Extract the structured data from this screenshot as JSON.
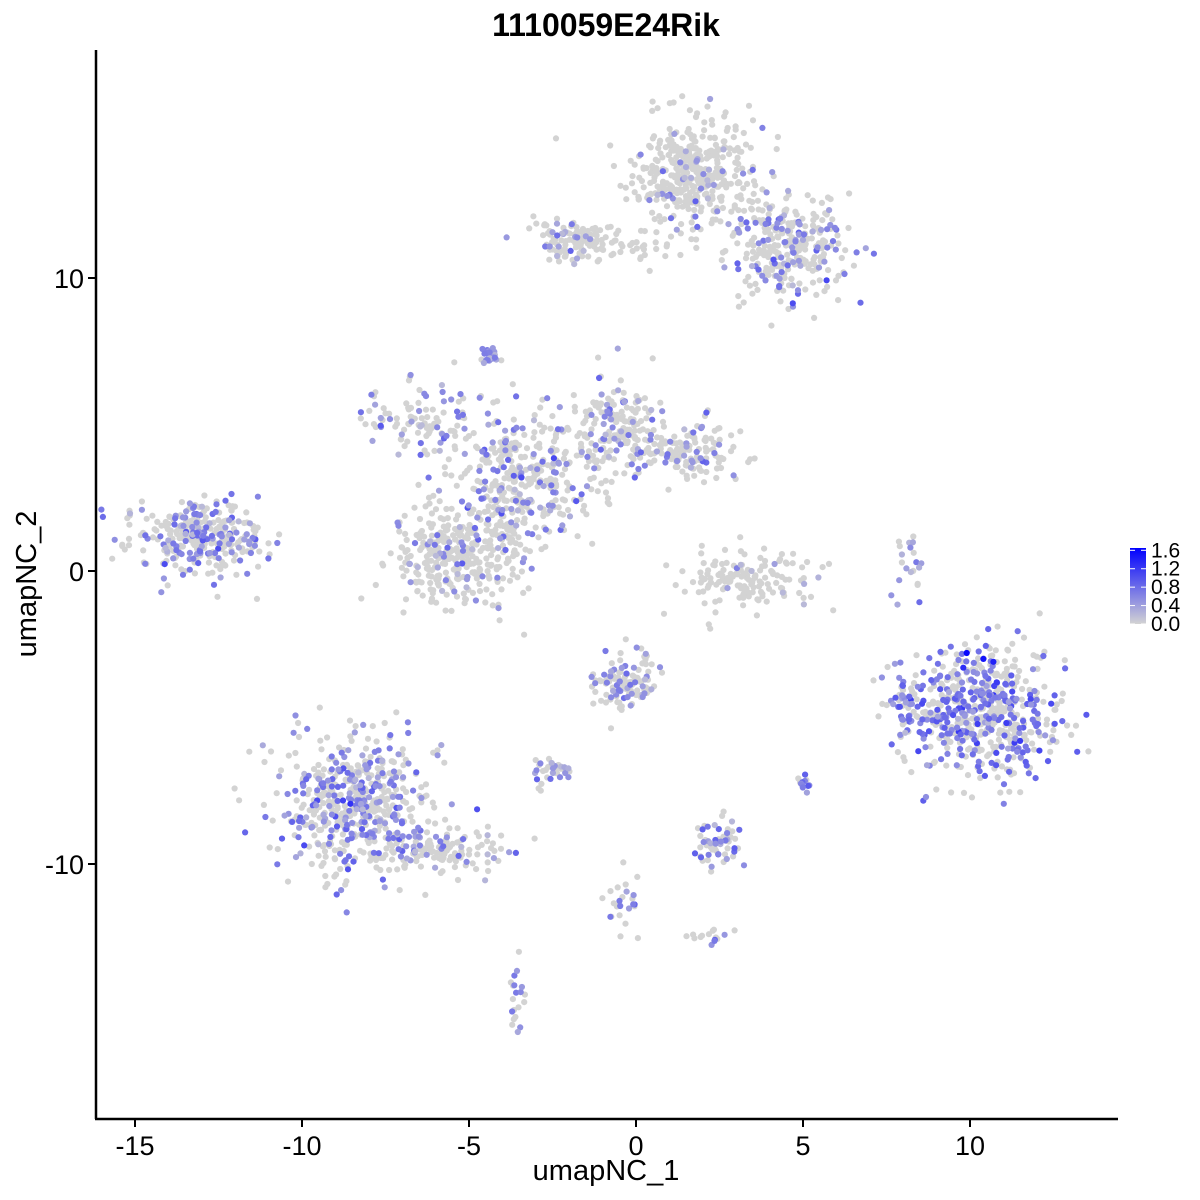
{
  "chart_data": {
    "type": "scatter",
    "title": "1110059E24Rik",
    "xlabel": "umapNC_1",
    "ylabel": "umapNC_2",
    "xlim": [
      -16.4,
      14.3
    ],
    "ylim": [
      -17.7,
      17.6
    ],
    "x_ticks": [
      -15,
      -10,
      -5,
      0,
      5,
      10
    ],
    "x_tick_labels": [
      "-15",
      "-10",
      "-5",
      "0",
      "5",
      "10"
    ],
    "y_ticks": [
      10,
      0,
      -10
    ],
    "y_tick_labels": [
      "10",
      "0",
      "-10"
    ],
    "grid": false,
    "legend_position": "right",
    "color_scale": {
      "low_color": "#d3d3d3",
      "high_color": "#0000ff",
      "min": 0.0,
      "max": 1.65,
      "breaks": [
        1.6,
        1.2,
        0.8,
        0.4,
        0.0
      ],
      "break_labels": [
        "1.6",
        "1.2",
        "0.8",
        "0.4",
        "0.0"
      ]
    },
    "clusters": [
      {
        "center": [
          1.8,
          13.5
        ],
        "sd": [
          1.0,
          0.9
        ],
        "n": 420,
        "expr_frac": 0.1,
        "expr_mean": 0.45
      },
      {
        "center": [
          4.5,
          11.0
        ],
        "sd": [
          0.9,
          0.9
        ],
        "n": 300,
        "expr_frac": 0.25,
        "expr_mean": 0.6
      },
      {
        "center": [
          -2.0,
          11.3
        ],
        "sd": [
          0.6,
          0.35
        ],
        "n": 90,
        "expr_frac": 0.2,
        "expr_mean": 0.5
      },
      {
        "center": [
          -0.6,
          11.1
        ],
        "sd": [
          0.9,
          0.25
        ],
        "n": 50,
        "expr_frac": 0.1,
        "expr_mean": 0.4
      },
      {
        "center": [
          -6.2,
          5.2
        ],
        "sd": [
          0.9,
          0.6
        ],
        "n": 110,
        "expr_frac": 0.35,
        "expr_mean": 0.55
      },
      {
        "center": [
          -3.0,
          3.5
        ],
        "sd": [
          1.2,
          1.0
        ],
        "n": 280,
        "expr_frac": 0.25,
        "expr_mean": 0.6
      },
      {
        "center": [
          -0.6,
          5.0
        ],
        "sd": [
          0.6,
          0.9
        ],
        "n": 150,
        "expr_frac": 0.25,
        "expr_mean": 0.55
      },
      {
        "center": [
          1.5,
          4.1
        ],
        "sd": [
          0.8,
          0.5
        ],
        "n": 150,
        "expr_frac": 0.2,
        "expr_mean": 0.55
      },
      {
        "center": [
          -5.5,
          0.6
        ],
        "sd": [
          0.9,
          0.9
        ],
        "n": 320,
        "expr_frac": 0.15,
        "expr_mean": 0.5
      },
      {
        "center": [
          -3.8,
          1.8
        ],
        "sd": [
          0.5,
          1.0
        ],
        "n": 120,
        "expr_frac": 0.3,
        "expr_mean": 0.6
      },
      {
        "center": [
          -4.4,
          7.3
        ],
        "sd": [
          0.15,
          0.15
        ],
        "n": 25,
        "expr_frac": 0.9,
        "expr_mean": 0.6
      },
      {
        "center": [
          -13.0,
          1.1
        ],
        "sd": [
          1.0,
          0.6
        ],
        "n": 330,
        "expr_frac": 0.35,
        "expr_mean": 0.6
      },
      {
        "center": [
          3.3,
          -0.3
        ],
        "sd": [
          1.0,
          0.5
        ],
        "n": 150,
        "expr_frac": 0.05,
        "expr_mean": 0.4
      },
      {
        "center": [
          10.3,
          -4.8
        ],
        "sd": [
          1.2,
          1.1
        ],
        "n": 620,
        "expr_frac": 0.4,
        "expr_mean": 0.75
      },
      {
        "center": [
          8.1,
          -4.5
        ],
        "sd": [
          0.2,
          0.4
        ],
        "n": 30,
        "expr_frac": 0.7,
        "expr_mean": 0.6
      },
      {
        "center": [
          8.2,
          0.4
        ],
        "sd": [
          0.2,
          0.6
        ],
        "n": 20,
        "expr_frac": 0.5,
        "expr_mean": 0.5
      },
      {
        "center": [
          -8.5,
          -7.8
        ],
        "sd": [
          1.1,
          1.2
        ],
        "n": 520,
        "expr_frac": 0.4,
        "expr_mean": 0.6
      },
      {
        "center": [
          -6.0,
          -9.5
        ],
        "sd": [
          1.0,
          0.5
        ],
        "n": 140,
        "expr_frac": 0.2,
        "expr_mean": 0.5
      },
      {
        "center": [
          -0.4,
          -3.8
        ],
        "sd": [
          0.5,
          0.5
        ],
        "n": 120,
        "expr_frac": 0.35,
        "expr_mean": 0.6
      },
      {
        "center": [
          -2.5,
          -6.8
        ],
        "sd": [
          0.35,
          0.25
        ],
        "n": 35,
        "expr_frac": 0.35,
        "expr_mean": 0.5
      },
      {
        "center": [
          2.4,
          -9.3
        ],
        "sd": [
          0.4,
          0.4
        ],
        "n": 60,
        "expr_frac": 0.4,
        "expr_mean": 0.6
      },
      {
        "center": [
          -0.3,
          -11.2
        ],
        "sd": [
          0.3,
          0.6
        ],
        "n": 25,
        "expr_frac": 0.3,
        "expr_mean": 0.5
      },
      {
        "center": [
          2.2,
          -12.5
        ],
        "sd": [
          0.3,
          0.15
        ],
        "n": 15,
        "expr_frac": 0.4,
        "expr_mean": 0.5
      },
      {
        "center": [
          -3.5,
          -14.5
        ],
        "sd": [
          0.15,
          0.6
        ],
        "n": 20,
        "expr_frac": 0.4,
        "expr_mean": 0.5
      },
      {
        "center": [
          5.0,
          -7.2
        ],
        "sd": [
          0.15,
          0.2
        ],
        "n": 12,
        "expr_frac": 0.8,
        "expr_mean": 0.6
      },
      {
        "center": [
          -0.6,
          11.8
        ],
        "sd": [
          0.3,
          0.2
        ],
        "n": 1,
        "expr_frac": 0.0,
        "expr_mean": 0.0
      }
    ],
    "high_expression_points": [
      {
        "x": 9.9,
        "y": -2.8,
        "value": 1.6
      },
      {
        "x": 10.4,
        "y": -3.0,
        "value": 1.5
      },
      {
        "x": 10.7,
        "y": -3.1,
        "value": 1.4
      },
      {
        "x": 9.8,
        "y": -3.3,
        "value": 1.3
      },
      {
        "x": 11.5,
        "y": -5.8,
        "value": 1.2
      },
      {
        "x": 10.8,
        "y": -3.8,
        "value": 1.2
      }
    ]
  }
}
